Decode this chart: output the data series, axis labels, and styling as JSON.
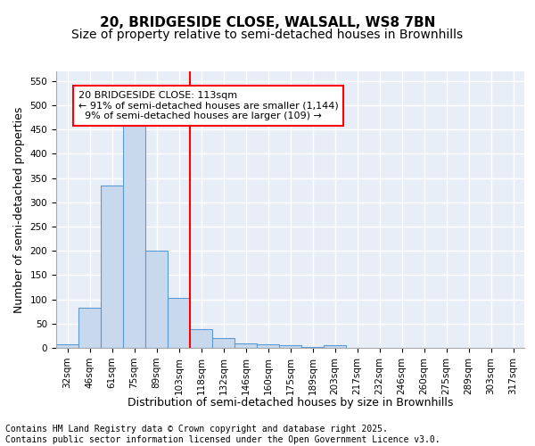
{
  "title_line1": "20, BRIDGESIDE CLOSE, WALSALL, WS8 7BN",
  "title_line2": "Size of property relative to semi-detached houses in Brownhills",
  "xlabel": "Distribution of semi-detached houses by size in Brownhills",
  "ylabel": "Number of semi-detached properties",
  "footer": "Contains HM Land Registry data © Crown copyright and database right 2025.\nContains public sector information licensed under the Open Government Licence v3.0.",
  "bins": [
    "32sqm",
    "46sqm",
    "61sqm",
    "75sqm",
    "89sqm",
    "103sqm",
    "118sqm",
    "132sqm",
    "146sqm",
    "160sqm",
    "175sqm",
    "189sqm",
    "203sqm",
    "217sqm",
    "232sqm",
    "246sqm",
    "260sqm",
    "275sqm",
    "289sqm",
    "303sqm",
    "317sqm"
  ],
  "bar_values": [
    8,
    82,
    335,
    458,
    200,
    103,
    38,
    20,
    9,
    8,
    5,
    1,
    5,
    0,
    0,
    0,
    0,
    0,
    0,
    0,
    0
  ],
  "bar_color": "#c9d9ed",
  "bar_edge_color": "#5b9bd5",
  "vline_x": 6.0,
  "vline_color": "red",
  "annotation_text": "20 BRIDGESIDE CLOSE: 113sqm\n← 91% of semi-detached houses are smaller (1,144)\n  9% of semi-detached houses are larger (109) →",
  "annotation_box_color": "white",
  "annotation_box_edge": "red",
  "ylim": [
    0,
    570
  ],
  "yticks": [
    0,
    50,
    100,
    150,
    200,
    250,
    300,
    350,
    400,
    450,
    500,
    550
  ],
  "background_color": "#e8eef7",
  "grid_color": "white",
  "title_fontsize": 11,
  "subtitle_fontsize": 10,
  "axis_label_fontsize": 9,
  "tick_fontsize": 7.5,
  "annotation_fontsize": 8,
  "footer_fontsize": 7
}
